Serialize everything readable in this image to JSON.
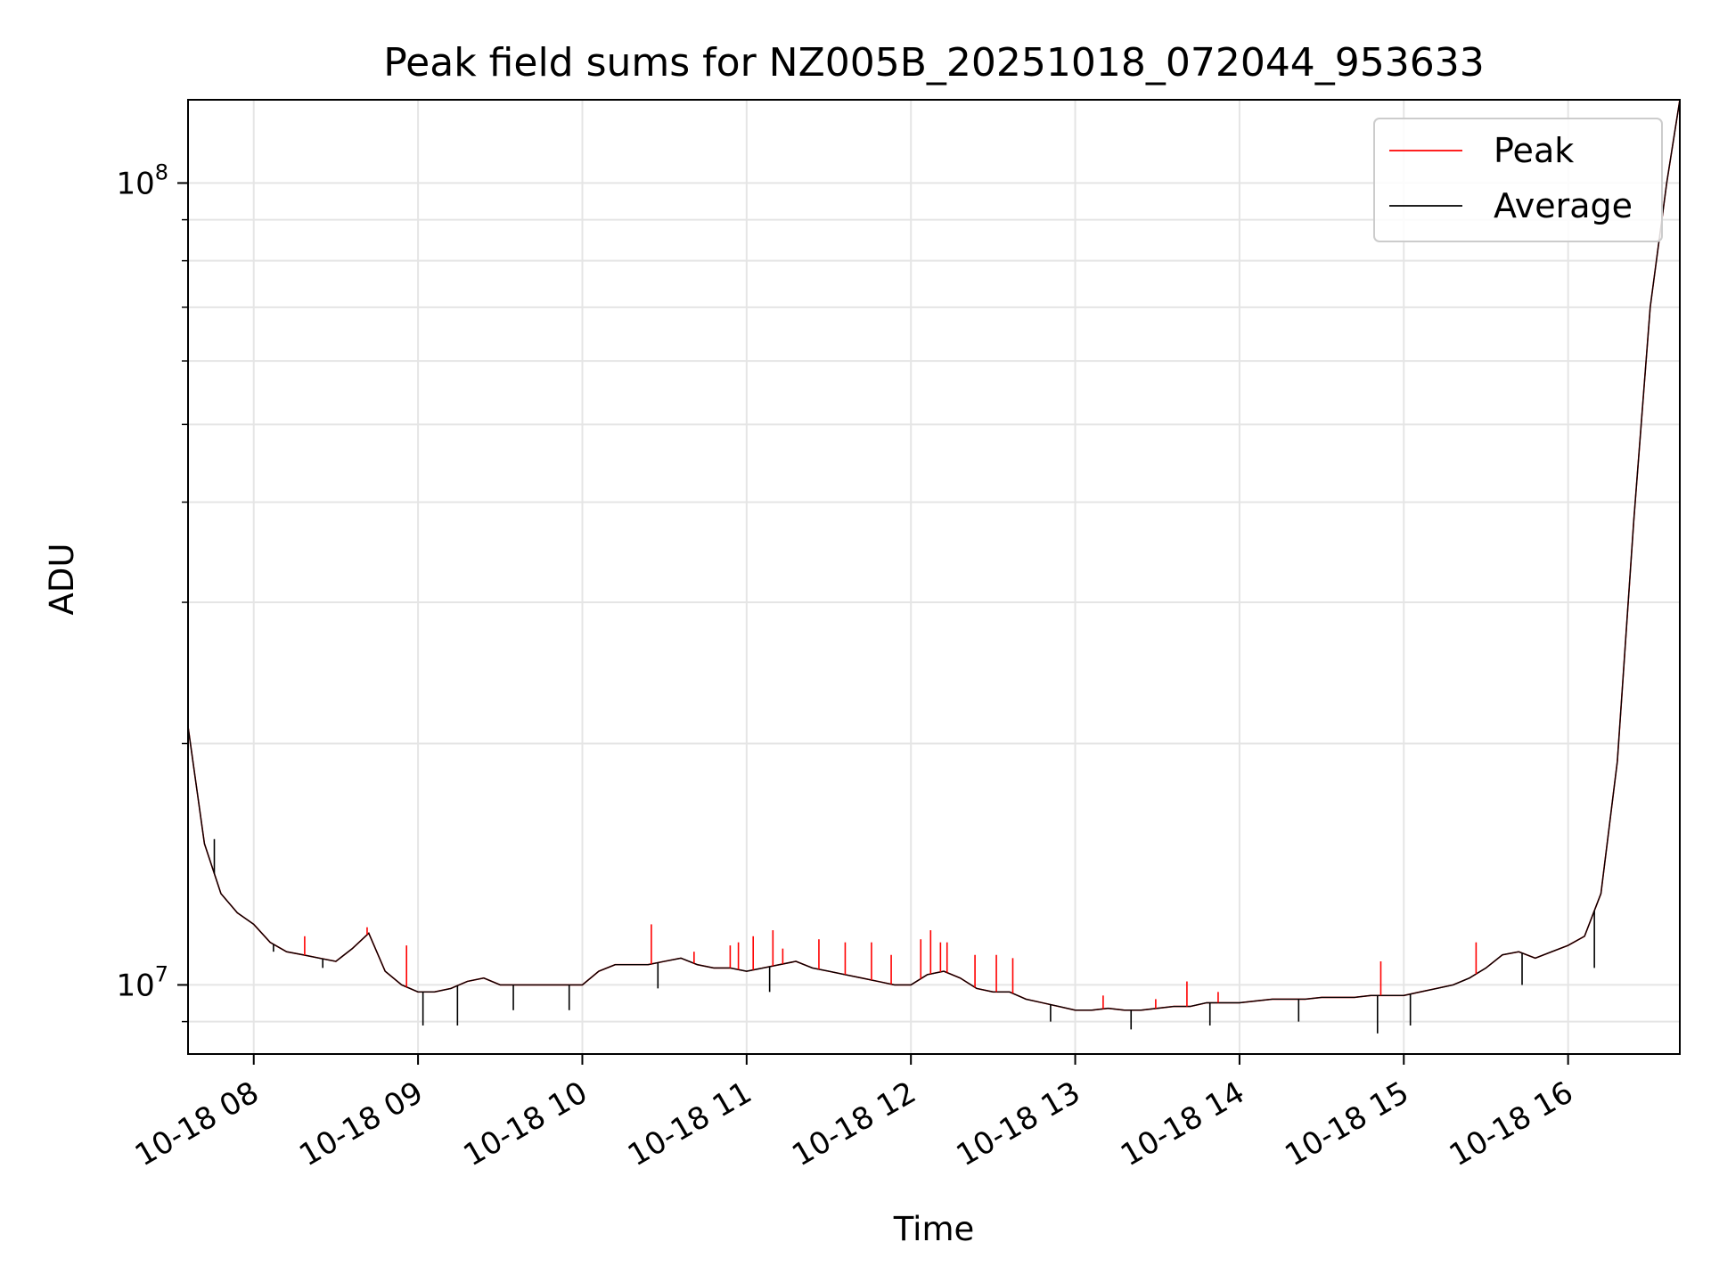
{
  "chart_data": {
    "type": "line",
    "title": "Peak field sums for NZ005B_20251018_072044_953633",
    "xlabel": "Time",
    "ylabel": "ADU",
    "yscale": "log",
    "xlim_hours": [
      7.6,
      16.68
    ],
    "ylim": [
      8200000,
      127000000
    ],
    "grid": true,
    "legend_position": "top-right",
    "x_ticks": [
      {
        "label": "10-18 08",
        "hour": 8
      },
      {
        "label": "10-18 09",
        "hour": 9
      },
      {
        "label": "10-18 10",
        "hour": 10
      },
      {
        "label": "10-18 11",
        "hour": 11
      },
      {
        "label": "10-18 12",
        "hour": 12
      },
      {
        "label": "10-18 13",
        "hour": 13
      },
      {
        "label": "10-18 14",
        "hour": 14
      },
      {
        "label": "10-18 15",
        "hour": 15
      },
      {
        "label": "10-18 16",
        "hour": 16
      }
    ],
    "y_ticks": [
      {
        "base": "10",
        "exp": "7",
        "value": 10000000
      },
      {
        "base": "10",
        "exp": "8",
        "value": 100000000
      }
    ],
    "series": [
      {
        "name": "Peak",
        "color": "#ff0000",
        "x": [
          7.6,
          7.7,
          7.8,
          7.9,
          8.0,
          8.1,
          8.2,
          8.3,
          8.4,
          8.5,
          8.6,
          8.7,
          8.8,
          8.9,
          9.0,
          9.1,
          9.2,
          9.3,
          9.4,
          9.5,
          9.6,
          9.7,
          9.8,
          9.9,
          10.0,
          10.1,
          10.2,
          10.3,
          10.4,
          10.5,
          10.6,
          10.7,
          10.8,
          10.9,
          11.0,
          11.1,
          11.2,
          11.3,
          11.4,
          11.5,
          11.6,
          11.7,
          11.8,
          11.9,
          12.0,
          12.1,
          12.2,
          12.3,
          12.4,
          12.5,
          12.6,
          12.7,
          12.8,
          12.9,
          13.0,
          13.1,
          13.2,
          13.3,
          13.4,
          13.5,
          13.6,
          13.7,
          13.8,
          13.9,
          14.0,
          14.1,
          14.2,
          14.3,
          14.4,
          14.5,
          14.6,
          14.7,
          14.8,
          14.9,
          15.0,
          15.1,
          15.2,
          15.3,
          15.4,
          15.5,
          15.6,
          15.7,
          15.8,
          15.9,
          16.0,
          16.1,
          16.2,
          16.3,
          16.4,
          16.5,
          16.6,
          16.68
        ],
        "y": [
          21000000,
          15000000,
          13000000,
          12300000,
          11900000,
          11300000,
          11000000,
          10900000,
          10800000,
          10700000,
          11100000,
          11600000,
          10400000,
          10000000,
          9800000,
          9800000,
          9900000,
          10100000,
          10200000,
          10000000,
          10000000,
          10000000,
          10000000,
          10000000,
          10000000,
          10400000,
          10600000,
          10600000,
          10600000,
          10700000,
          10800000,
          10600000,
          10500000,
          10500000,
          10400000,
          10500000,
          10600000,
          10700000,
          10500000,
          10400000,
          10300000,
          10200000,
          10100000,
          10000000,
          10000000,
          10300000,
          10400000,
          10200000,
          9900000,
          9800000,
          9800000,
          9600000,
          9500000,
          9400000,
          9300000,
          9300000,
          9350000,
          9300000,
          9300000,
          9350000,
          9400000,
          9400000,
          9500000,
          9500000,
          9500000,
          9550000,
          9600000,
          9600000,
          9600000,
          9650000,
          9650000,
          9650000,
          9700000,
          9700000,
          9700000,
          9800000,
          9900000,
          10000000,
          10200000,
          10500000,
          10900000,
          11000000,
          10800000,
          11000000,
          11200000,
          11500000,
          13000000,
          19000000,
          38000000,
          70000000,
          100000000,
          127000000
        ]
      },
      {
        "name": "Average",
        "color": "#000000",
        "x": [
          7.6,
          7.7,
          7.8,
          7.9,
          8.0,
          8.1,
          8.2,
          8.3,
          8.4,
          8.5,
          8.6,
          8.7,
          8.8,
          8.9,
          9.0,
          9.1,
          9.2,
          9.3,
          9.4,
          9.5,
          9.6,
          9.7,
          9.8,
          9.9,
          10.0,
          10.1,
          10.2,
          10.3,
          10.4,
          10.5,
          10.6,
          10.7,
          10.8,
          10.9,
          11.0,
          11.1,
          11.2,
          11.3,
          11.4,
          11.5,
          11.6,
          11.7,
          11.8,
          11.9,
          12.0,
          12.1,
          12.2,
          12.3,
          12.4,
          12.5,
          12.6,
          12.7,
          12.8,
          12.9,
          13.0,
          13.1,
          13.2,
          13.3,
          13.4,
          13.5,
          13.6,
          13.7,
          13.8,
          13.9,
          14.0,
          14.1,
          14.2,
          14.3,
          14.4,
          14.5,
          14.6,
          14.7,
          14.8,
          14.9,
          15.0,
          15.1,
          15.2,
          15.3,
          15.4,
          15.5,
          15.6,
          15.7,
          15.8,
          15.9,
          16.0,
          16.1,
          16.2,
          16.3,
          16.4,
          16.5,
          16.6,
          16.68
        ],
        "y": [
          21000000,
          15000000,
          13000000,
          12300000,
          11900000,
          11300000,
          11000000,
          10900000,
          10800000,
          10700000,
          11100000,
          11600000,
          10400000,
          10000000,
          9800000,
          9800000,
          9900000,
          10100000,
          10200000,
          10000000,
          10000000,
          10000000,
          10000000,
          10000000,
          10000000,
          10400000,
          10600000,
          10600000,
          10600000,
          10700000,
          10800000,
          10600000,
          10500000,
          10500000,
          10400000,
          10500000,
          10600000,
          10700000,
          10500000,
          10400000,
          10300000,
          10200000,
          10100000,
          10000000,
          10000000,
          10300000,
          10400000,
          10200000,
          9900000,
          9800000,
          9800000,
          9600000,
          9500000,
          9400000,
          9300000,
          9300000,
          9350000,
          9300000,
          9300000,
          9350000,
          9400000,
          9400000,
          9500000,
          9500000,
          9500000,
          9550000,
          9600000,
          9600000,
          9600000,
          9650000,
          9650000,
          9650000,
          9700000,
          9700000,
          9700000,
          9800000,
          9900000,
          10000000,
          10200000,
          10500000,
          10900000,
          11000000,
          10800000,
          11000000,
          11200000,
          11500000,
          13000000,
          19000000,
          38000000,
          70000000,
          100000000,
          127000000
        ]
      }
    ],
    "peak_spikes": [
      {
        "x": 8.31,
        "y": 11500000
      },
      {
        "x": 8.69,
        "y": 11800000
      },
      {
        "x": 8.93,
        "y": 11200000
      },
      {
        "x": 10.42,
        "y": 11900000
      },
      {
        "x": 10.68,
        "y": 11000000
      },
      {
        "x": 10.9,
        "y": 11200000
      },
      {
        "x": 10.95,
        "y": 11300000
      },
      {
        "x": 11.04,
        "y": 11500000
      },
      {
        "x": 11.16,
        "y": 11700000
      },
      {
        "x": 11.22,
        "y": 11100000
      },
      {
        "x": 11.44,
        "y": 11400000
      },
      {
        "x": 11.6,
        "y": 11300000
      },
      {
        "x": 11.76,
        "y": 11300000
      },
      {
        "x": 11.88,
        "y": 10900000
      },
      {
        "x": 12.06,
        "y": 11400000
      },
      {
        "x": 12.12,
        "y": 11700000
      },
      {
        "x": 12.18,
        "y": 11300000
      },
      {
        "x": 12.22,
        "y": 11300000
      },
      {
        "x": 12.39,
        "y": 10900000
      },
      {
        "x": 12.52,
        "y": 10900000
      },
      {
        "x": 12.62,
        "y": 10800000
      },
      {
        "x": 13.17,
        "y": 9700000
      },
      {
        "x": 13.49,
        "y": 9600000
      },
      {
        "x": 13.68,
        "y": 10100000
      },
      {
        "x": 13.87,
        "y": 9800000
      },
      {
        "x": 14.86,
        "y": 10700000
      },
      {
        "x": 15.44,
        "y": 11300000
      }
    ],
    "average_dips": [
      {
        "x": 7.76,
        "y": 15200000
      },
      {
        "x": 8.12,
        "y": 11000000
      },
      {
        "x": 8.42,
        "y": 10500000
      },
      {
        "x": 9.03,
        "y": 8900000
      },
      {
        "x": 9.24,
        "y": 8900000
      },
      {
        "x": 9.58,
        "y": 9300000
      },
      {
        "x": 9.92,
        "y": 9300000
      },
      {
        "x": 10.46,
        "y": 9900000
      },
      {
        "x": 11.14,
        "y": 9800000
      },
      {
        "x": 12.85,
        "y": 9000000
      },
      {
        "x": 13.34,
        "y": 8800000
      },
      {
        "x": 13.82,
        "y": 8900000
      },
      {
        "x": 14.36,
        "y": 9000000
      },
      {
        "x": 14.84,
        "y": 8700000
      },
      {
        "x": 15.04,
        "y": 8900000
      },
      {
        "x": 15.72,
        "y": 10000000
      },
      {
        "x": 16.16,
        "y": 10500000
      }
    ],
    "legend": [
      {
        "label": "Peak",
        "color": "#ff0000"
      },
      {
        "label": "Average",
        "color": "#000000"
      }
    ]
  }
}
